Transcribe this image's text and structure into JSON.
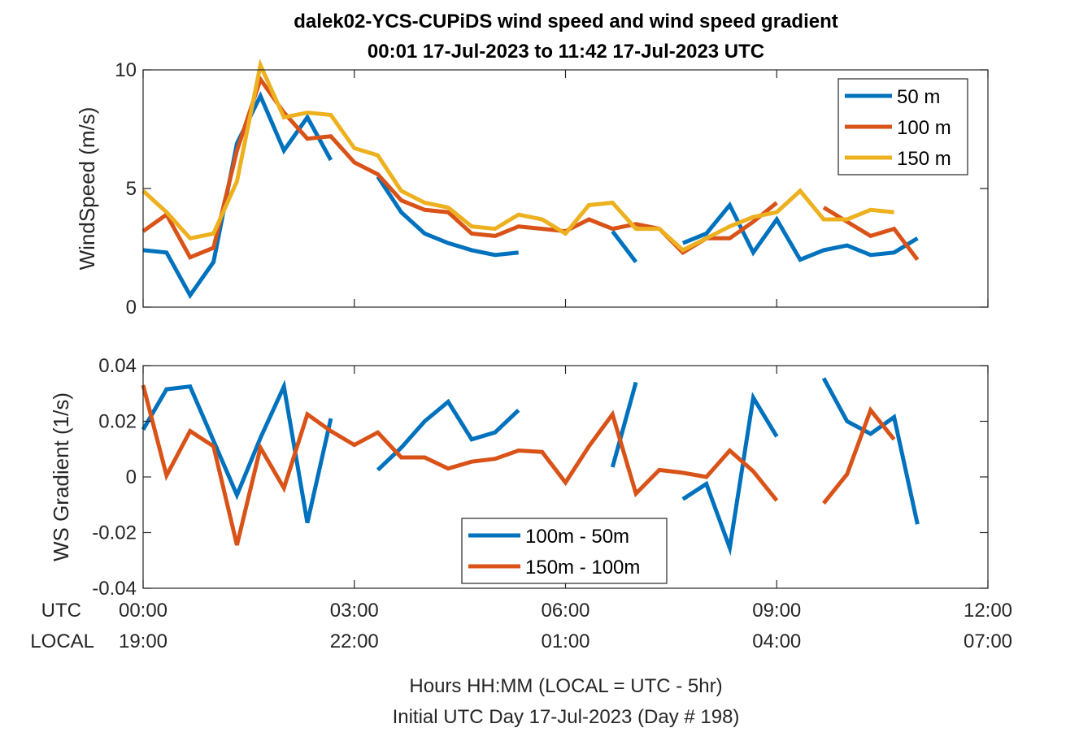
{
  "title": {
    "line1": "dalek02-YCS-CUPiDS  wind speed and wind speed gradient",
    "line2": "00:01 17-Jul-2023 to 11:42 17-Jul-2023  UTC"
  },
  "x_axis": {
    "row_utc_label": "UTC",
    "row_local_label": "LOCAL",
    "utc_ticks": [
      "00:00",
      "03:00",
      "06:00",
      "09:00",
      "12:00"
    ],
    "local_ticks": [
      "19:00",
      "22:00",
      "01:00",
      "04:00",
      "07:00"
    ],
    "caption1": "Hours HH:MM  (LOCAL = UTC - 5hr)",
    "caption2": "Initial UTC Day 17-Jul-2023 (Day # 198)"
  },
  "colors": {
    "blue": "#0072BD",
    "orange": "#D95319",
    "yellow": "#EDB120"
  },
  "chart_data": [
    {
      "type": "line",
      "ylabel": "WindSpeed (m/s)",
      "xlim": [
        0,
        12
      ],
      "ylim": [
        0,
        10
      ],
      "yticks": [
        0,
        5,
        10
      ],
      "ytick_labels": [
        "0",
        "5",
        "10"
      ],
      "grid": false,
      "legend_position": "top-right",
      "series": [
        {
          "name": "50 m",
          "color": "#0072BD",
          "x": [
            0.0,
            0.333,
            0.667,
            1.0,
            1.333,
            1.667,
            2.0,
            2.333,
            2.667,
            null,
            3.333,
            3.667,
            4.0,
            4.333,
            4.667,
            5.0,
            5.333,
            null,
            6.667,
            7.0,
            null,
            7.667,
            8.0,
            8.333,
            8.667,
            9.0,
            9.333,
            9.667,
            10.0,
            10.333,
            10.667,
            11.0
          ],
          "values": [
            2.4,
            2.3,
            0.5,
            1.9,
            6.9,
            8.9,
            6.6,
            8.0,
            6.2,
            null,
            5.5,
            4.0,
            3.1,
            2.7,
            2.4,
            2.2,
            2.3,
            null,
            3.2,
            1.9,
            null,
            2.7,
            3.1,
            4.3,
            2.3,
            3.7,
            2.0,
            2.4,
            2.6,
            2.2,
            2.3,
            2.9
          ]
        },
        {
          "name": "100 m",
          "color": "#D95319",
          "x": [
            0.0,
            0.333,
            0.667,
            1.0,
            1.333,
            1.667,
            2.0,
            2.333,
            2.667,
            3.0,
            3.333,
            3.667,
            4.0,
            4.333,
            4.667,
            5.0,
            5.333,
            5.667,
            6.0,
            6.333,
            6.667,
            7.0,
            7.333,
            7.667,
            8.0,
            8.333,
            8.667,
            9.0,
            null,
            9.667,
            10.0,
            10.333,
            10.667,
            11.0
          ],
          "values": [
            3.2,
            3.9,
            2.1,
            2.5,
            6.6,
            9.6,
            8.2,
            7.1,
            7.2,
            6.1,
            5.6,
            4.5,
            4.1,
            4.0,
            3.1,
            3.0,
            3.4,
            3.3,
            3.2,
            3.7,
            3.3,
            3.5,
            3.3,
            2.3,
            2.9,
            2.9,
            3.6,
            4.4,
            null,
            4.2,
            3.6,
            3.0,
            3.3,
            2.0
          ]
        },
        {
          "name": "150 m",
          "color": "#EDB120",
          "x": [
            0.0,
            0.333,
            0.667,
            1.0,
            1.333,
            1.667,
            2.0,
            2.333,
            2.667,
            3.0,
            3.333,
            3.667,
            4.0,
            4.333,
            4.667,
            5.0,
            5.333,
            5.667,
            6.0,
            6.333,
            6.667,
            7.0,
            7.333,
            7.667,
            8.0,
            8.333,
            8.667,
            9.0,
            9.333,
            9.667,
            10.0,
            10.333,
            10.667
          ],
          "values": [
            4.9,
            4.0,
            2.9,
            3.1,
            5.3,
            10.2,
            8.0,
            8.2,
            8.1,
            6.7,
            6.4,
            4.9,
            4.4,
            4.2,
            3.4,
            3.3,
            3.9,
            3.7,
            3.1,
            4.3,
            4.4,
            3.3,
            3.3,
            2.4,
            2.9,
            3.4,
            3.8,
            4.0,
            4.9,
            3.7,
            3.7,
            4.1,
            4.0
          ]
        }
      ]
    },
    {
      "type": "line",
      "ylabel": "WS Gradient (1/s)",
      "xlim": [
        0,
        12
      ],
      "ylim": [
        -0.04,
        0.04
      ],
      "yticks": [
        -0.04,
        -0.02,
        0,
        0.02,
        0.04
      ],
      "ytick_labels": [
        "-0.04",
        "-0.02",
        "0",
        "0.02",
        "0.04"
      ],
      "grid": false,
      "legend_position": "bottom-center",
      "series": [
        {
          "name": "100m - 50m",
          "color": "#0072BD",
          "x": [
            0.0,
            0.333,
            0.667,
            1.0,
            1.333,
            1.667,
            2.0,
            2.333,
            2.667,
            null,
            3.333,
            3.667,
            4.0,
            4.333,
            4.667,
            5.0,
            5.333,
            null,
            6.667,
            7.0,
            null,
            7.667,
            8.0,
            8.333,
            8.667,
            9.0,
            null,
            9.667,
            10.0,
            10.333,
            10.667,
            11.0
          ],
          "values": [
            0.017,
            0.0315,
            0.0325,
            0.013,
            -0.0065,
            0.014,
            0.0325,
            -0.0165,
            0.021,
            null,
            0.0025,
            0.0105,
            0.02,
            0.027,
            0.0135,
            0.016,
            0.024,
            null,
            0.0035,
            0.034,
            null,
            -0.008,
            -0.0025,
            -0.0255,
            0.0285,
            0.0145,
            null,
            0.0355,
            0.02,
            0.0155,
            0.0215,
            -0.017
          ]
        },
        {
          "name": "150m - 100m",
          "color": "#D95319",
          "x": [
            0.0,
            0.333,
            0.667,
            1.0,
            1.333,
            1.667,
            2.0,
            2.333,
            2.667,
            3.0,
            3.333,
            3.667,
            4.0,
            4.333,
            4.667,
            5.0,
            5.333,
            5.667,
            6.0,
            6.333,
            6.667,
            7.0,
            7.333,
            7.667,
            8.0,
            8.333,
            8.667,
            9.0,
            null,
            9.667,
            10.0,
            10.333,
            10.667
          ],
          "values": [
            0.033,
            0.0005,
            0.0165,
            0.011,
            -0.0245,
            0.0105,
            -0.004,
            0.0225,
            0.0165,
            0.0115,
            0.016,
            0.007,
            0.007,
            0.003,
            0.0055,
            0.0065,
            0.0095,
            0.009,
            -0.002,
            0.011,
            0.0225,
            -0.006,
            0.0025,
            0.0015,
            0.0,
            0.0095,
            0.002,
            -0.0085,
            null,
            -0.0095,
            0.001,
            0.024,
            0.0135
          ]
        }
      ]
    }
  ]
}
